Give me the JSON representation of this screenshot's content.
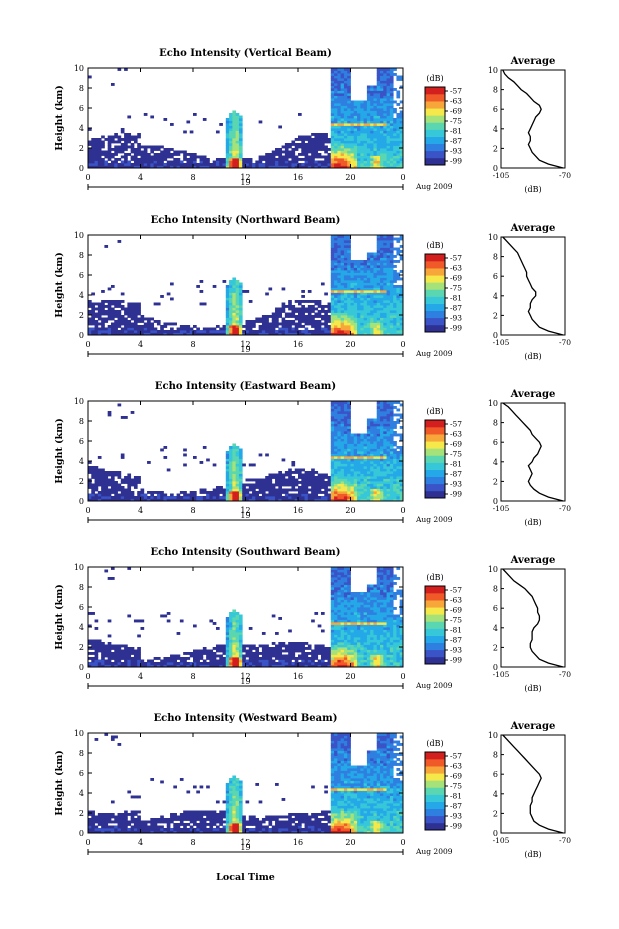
{
  "figure": {
    "x_axis_label": "Local Time",
    "date_label": "Aug 2009",
    "colorbar_unit": "(dB)",
    "colorbar_ticks": [
      "-57",
      "-63",
      "-69",
      "-75",
      "-81",
      "-87",
      "-93",
      "-99"
    ],
    "avg_title": "Average",
    "avg_xlabel": "(dB)",
    "avg_xticks": [
      "-105",
      "-70"
    ],
    "x_ticks": [
      "0",
      "4",
      "8",
      "12",
      "16",
      "20",
      "0"
    ],
    "y_ticks": [
      "0",
      "2",
      "4",
      "6",
      "8",
      "10"
    ],
    "y_label": "Height (km)",
    "day_label": "19"
  },
  "colors": {
    "colorscale": [
      "#2e3192",
      "#3a53c6",
      "#2f7fe0",
      "#25a8e8",
      "#36c8d8",
      "#5ad6b0",
      "#a6e27a",
      "#f4e84a",
      "#f7a63a",
      "#f05a28",
      "#d41f1f"
    ]
  },
  "chart_data": [
    {
      "type": "heatmap",
      "title": "Echo Intensity (Vertical Beam)",
      "xlabel": "Local Time",
      "ylabel": "Height (km)",
      "xlim": [
        0,
        24
      ],
      "ylim": [
        0,
        10
      ],
      "colorbar_range_db": [
        -99,
        -57
      ],
      "average_profile": {
        "height_km": [
          0,
          0.4,
          0.8,
          1.2,
          1.6,
          2,
          2.4,
          2.8,
          3.2,
          3.6,
          4,
          4.4,
          4.8,
          5.2,
          5.6,
          6,
          6.4,
          6.8,
          7.2,
          7.6,
          8,
          8.4,
          8.8,
          9.2,
          9.6,
          10
        ],
        "db": [
          -71,
          -79,
          -84,
          -86,
          -88,
          -89,
          -90,
          -89,
          -89,
          -90,
          -89,
          -88,
          -87,
          -86,
          -84,
          -83,
          -84,
          -87,
          -89,
          -91,
          -94,
          -96,
          -98,
          -101,
          -103,
          -104
        ]
      }
    },
    {
      "type": "heatmap",
      "title": "Echo Intensity (Northward Beam)",
      "xlabel": "Local Time",
      "ylabel": "Height (km)",
      "xlim": [
        0,
        24
      ],
      "ylim": [
        0,
        10
      ],
      "colorbar_range_db": [
        -99,
        -57
      ],
      "average_profile": {
        "height_km": [
          0,
          0.4,
          0.8,
          1.2,
          1.6,
          2,
          2.4,
          2.8,
          3.2,
          3.6,
          4,
          4.4,
          4.8,
          5.2,
          5.6,
          6,
          6.4,
          6.8,
          7.2,
          7.6,
          8,
          8.4,
          8.8,
          9.2,
          9.6,
          10
        ],
        "db": [
          -71,
          -79,
          -84,
          -86,
          -88,
          -89,
          -90,
          -89,
          -89,
          -88,
          -86,
          -86,
          -88,
          -89,
          -90,
          -91,
          -91,
          -92,
          -93,
          -94,
          -95,
          -96,
          -98,
          -100,
          -102,
          -104
        ]
      }
    },
    {
      "type": "heatmap",
      "title": "Echo Intensity (Eastward Beam)",
      "xlabel": "Local Time",
      "ylabel": "Height (km)",
      "xlim": [
        0,
        24
      ],
      "ylim": [
        0,
        10
      ],
      "colorbar_range_db": [
        -99,
        -57
      ],
      "average_profile": {
        "height_km": [
          0,
          0.4,
          0.8,
          1.2,
          1.6,
          2,
          2.4,
          2.8,
          3.2,
          3.6,
          4,
          4.4,
          4.8,
          5.2,
          5.6,
          6,
          6.4,
          6.8,
          7.2,
          7.6,
          8,
          8.4,
          8.8,
          9.2,
          9.6,
          10
        ],
        "db": [
          -71,
          -79,
          -84,
          -87,
          -89,
          -90,
          -89,
          -88,
          -89,
          -90,
          -88,
          -87,
          -85,
          -84,
          -83,
          -84,
          -86,
          -88,
          -89,
          -91,
          -93,
          -95,
          -97,
          -99,
          -101,
          -104
        ]
      }
    },
    {
      "type": "heatmap",
      "title": "Echo Intensity (Southward Beam)",
      "xlabel": "Local Time",
      "ylabel": "Height (km)",
      "xlim": [
        0,
        24
      ],
      "ylim": [
        0,
        10
      ],
      "colorbar_range_db": [
        -99,
        -57
      ],
      "average_profile": {
        "height_km": [
          0,
          0.4,
          0.8,
          1.2,
          1.6,
          2,
          2.4,
          2.8,
          3.2,
          3.6,
          4,
          4.4,
          4.8,
          5.2,
          5.6,
          6,
          6.4,
          6.8,
          7.2,
          7.6,
          8,
          8.4,
          8.8,
          9.2,
          9.6,
          10
        ],
        "db": [
          -71,
          -79,
          -84,
          -86,
          -88,
          -89,
          -89,
          -88,
          -88,
          -88,
          -87,
          -85,
          -84,
          -84,
          -85,
          -85,
          -86,
          -87,
          -88,
          -90,
          -92,
          -95,
          -98,
          -100,
          -102,
          -104
        ]
      }
    },
    {
      "type": "heatmap",
      "title": "Echo Intensity (Westward Beam)",
      "xlabel": "Local Time",
      "ylabel": "Height (km)",
      "xlim": [
        0,
        24
      ],
      "ylim": [
        0,
        10
      ],
      "colorbar_range_db": [
        -99,
        -57
      ],
      "average_profile": {
        "height_km": [
          0,
          0.4,
          0.8,
          1.2,
          1.6,
          2,
          2.4,
          2.8,
          3.2,
          3.6,
          4,
          4.4,
          4.8,
          5.2,
          5.6,
          6,
          6.4,
          6.8,
          7.2,
          7.6,
          8,
          8.4,
          8.8,
          9.2,
          9.6,
          10
        ],
        "db": [
          -71,
          -79,
          -84,
          -87,
          -88,
          -89,
          -89,
          -89,
          -88,
          -88,
          -87,
          -86,
          -85,
          -84,
          -83,
          -84,
          -86,
          -88,
          -90,
          -92,
          -94,
          -96,
          -98,
          -100,
          -102,
          -104
        ]
      }
    }
  ]
}
